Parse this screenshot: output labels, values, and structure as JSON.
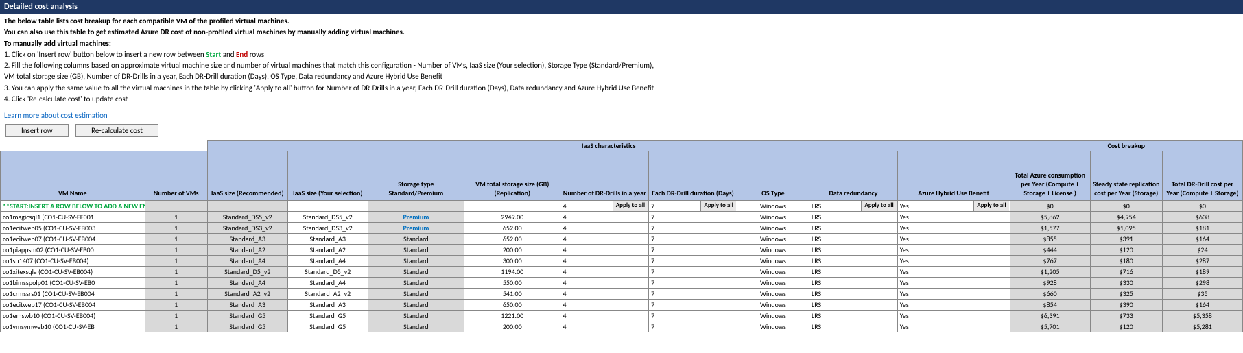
{
  "title": "Detailed cost analysis",
  "instructions": {
    "line1": "The below table lists cost breakup for each compatible VM of the profiled virtual machines.",
    "line2": "You can also use this table to get estimated Azure DR cost of non-profiled virtual machines by manually adding virtual machines.",
    "line3": "To manually add virtual machines:",
    "step1a": "1. Click on 'Insert row' button below to insert a new row between ",
    "step1_start": "Start",
    "step1b": " and ",
    "step1_end": "End",
    "step1c": " rows",
    "step2a": "2. Fill the following columns based on approximate virtual machine size and number of virtual machines that match this configuration - Number of VMs, IaaS size (Your selection), Storage Type (Standard/Premium),",
    "step2b": "    VM total storage size (GB), Number of DR-Drills in a year, Each DR-Drill duration (Days), OS Type, Data redundancy and Azure Hybrid Use Benefit",
    "step3": "3. You can apply the same value to all the virtual machines in the table by clicking 'Apply to all' button for Number of DR-Drills in a year, Each DR-Drill duration (Days), Data redundancy and Azure Hybrid Use Benefit",
    "step4": "4. Click 'Re-calculate cost' to update cost"
  },
  "link": "Learn more about cost estimation",
  "buttons": {
    "insert": "Insert row",
    "recalc": "Re-calculate cost"
  },
  "groupHeaders": {
    "iaas": "IaaS characteristics",
    "cost": "Cost breakup"
  },
  "headers": {
    "vm": "VM Name",
    "num": "Number of VMs",
    "sizeRec": "IaaS size (Recommended)",
    "sizeSel": "IaaS size (Your selection)",
    "storType": "Storage type Standard/Premium",
    "storSize": "VM total storage size (GB) (Replication)",
    "drNum": "Number of DR-Drills in a year",
    "drDur": "Each DR-Drill duration (Days)",
    "os": "OS Type",
    "redund": "Data redundancy",
    "hybrid": "Azure Hybrid Use Benefit",
    "totAzure": "Total  Azure consumption per Year (Compute + Storage + License )",
    "steady": "Steady state replication cost per Year (Storage)",
    "totDrill": "Total DR-Drill cost per Year (Compute  + Storage)"
  },
  "applyAll": "Apply to all",
  "startRow": "**START:INSERT A ROW BELOW TO ADD A NEW ENTRY**",
  "defDr": "4",
  "defDur": "7",
  "defOs": "Windows",
  "defRed": "LRS",
  "defHyb": "Yes",
  "zero": "$0",
  "rows": [
    {
      "vm": "co1magicsql1 (CO1-CU-SV-EE001",
      "n": "1",
      "rec": "Standard_DS5_v2",
      "sel": "Standard_DS5_v2",
      "st": "Premium",
      "sz": "2949.00",
      "dr": "4",
      "dur": "7",
      "os": "Windows",
      "red": "LRS",
      "hyb": "Yes",
      "a": "$5,862",
      "b": "$4,954",
      "c": "$608",
      "prem": true
    },
    {
      "vm": "co1ecitweb05 (CO1-CU-SV-EB003",
      "n": "1",
      "rec": "Standard_DS3_v2",
      "sel": "Standard_DS3_v2",
      "st": "Premium",
      "sz": "652.00",
      "dr": "4",
      "dur": "7",
      "os": "Windows",
      "red": "LRS",
      "hyb": "Yes",
      "a": "$1,577",
      "b": "$1,095",
      "c": "$181",
      "prem": true
    },
    {
      "vm": "co1ecitweb07 (CO1-CU-SV-EB004",
      "n": "1",
      "rec": "Standard_A3",
      "sel": "Standard_A3",
      "st": "Standard",
      "sz": "652.00",
      "dr": "4",
      "dur": "7",
      "os": "Windows",
      "red": "LRS",
      "hyb": "Yes",
      "a": "$855",
      "b": "$391",
      "c": "$164",
      "prem": false
    },
    {
      "vm": "co1piappsm02 (CO1-CU-SV-EB00",
      "n": "1",
      "rec": "Standard_A2",
      "sel": "Standard_A2",
      "st": "Standard",
      "sz": "200.00",
      "dr": "4",
      "dur": "7",
      "os": "Windows",
      "red": "LRS",
      "hyb": "Yes",
      "a": "$444",
      "b": "$120",
      "c": "$24",
      "prem": false
    },
    {
      "vm": "co1su1407 (CO1-CU-SV-EB004)",
      "n": "1",
      "rec": "Standard_A4",
      "sel": "Standard_A4",
      "st": "Standard",
      "sz": "300.00",
      "dr": "4",
      "dur": "7",
      "os": "Windows",
      "red": "LRS",
      "hyb": "Yes",
      "a": "$767",
      "b": "$180",
      "c": "$287",
      "prem": false
    },
    {
      "vm": "co1xitexsqla (CO1-CU-SV-EB004)",
      "n": "1",
      "rec": "Standard_D5_v2",
      "sel": "Standard_D5_v2",
      "st": "Standard",
      "sz": "1194.00",
      "dr": "4",
      "dur": "7",
      "os": "Windows",
      "red": "LRS",
      "hyb": "Yes",
      "a": "$1,205",
      "b": "$716",
      "c": "$189",
      "prem": false
    },
    {
      "vm": "co1bimsspolp01 (CO1-CU-SV-EB0",
      "n": "1",
      "rec": "Standard_A4",
      "sel": "Standard_A4",
      "st": "Standard",
      "sz": "550.00",
      "dr": "4",
      "dur": "7",
      "os": "Windows",
      "red": "LRS",
      "hyb": "Yes",
      "a": "$928",
      "b": "$330",
      "c": "$298",
      "prem": false
    },
    {
      "vm": "co1crmssrs01 (CO1-CU-SV-EB004",
      "n": "1",
      "rec": "Standard_A2_v2",
      "sel": "Standard_A2_v2",
      "st": "Standard",
      "sz": "541.00",
      "dr": "4",
      "dur": "7",
      "os": "Windows",
      "red": "LRS",
      "hyb": "Yes",
      "a": "$660",
      "b": "$325",
      "c": "$35",
      "prem": false
    },
    {
      "vm": "co1ecitweb17 (CO1-CU-SV-EB004",
      "n": "1",
      "rec": "Standard_A3",
      "sel": "Standard_A3",
      "st": "Standard",
      "sz": "650.00",
      "dr": "4",
      "dur": "7",
      "os": "Windows",
      "red": "LRS",
      "hyb": "Yes",
      "a": "$854",
      "b": "$390",
      "c": "$164",
      "prem": false
    },
    {
      "vm": "co1emswb10 (CO1-CU-SV-EB004)",
      "n": "1",
      "rec": "Standard_G5",
      "sel": "Standard_G5",
      "st": "Standard",
      "sz": "1221.00",
      "dr": "4",
      "dur": "7",
      "os": "Windows",
      "red": "LRS",
      "hyb": "Yes",
      "a": "$6,391",
      "b": "$733",
      "c": "$5,358",
      "prem": false
    },
    {
      "vm": "co1vmsymweb10 (CO1-CU-SV-EB",
      "n": "1",
      "rec": "Standard_G5",
      "sel": "Standard_G5",
      "st": "Standard",
      "sz": "200.00",
      "dr": "4",
      "dur": "7",
      "os": "Windows",
      "red": "LRS",
      "hyb": "Yes",
      "a": "$5,701",
      "b": "$120",
      "c": "$5,281",
      "prem": false
    }
  ]
}
